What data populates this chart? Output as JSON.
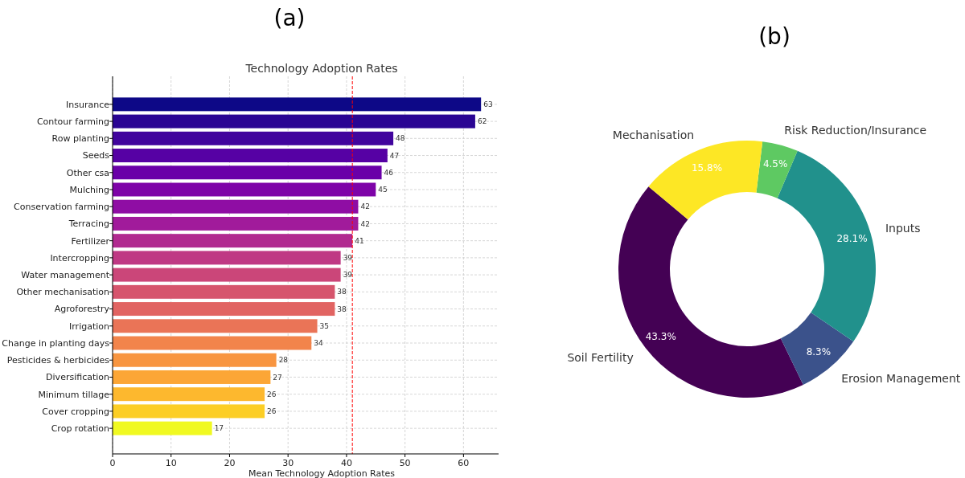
{
  "chart_data": [
    {
      "type": "bar",
      "orientation": "horizontal",
      "title": "Technology Adoption Rates",
      "xlabel": "Mean Technology Adoption Rates",
      "annotations": [
        "(a)"
      ],
      "categories": [
        "Insurance",
        "Contour farming",
        "Row planting",
        "Seeds",
        "Other csa",
        "Mulching",
        "Conservation farming",
        "Terracing",
        "Fertilizer",
        "Intercropping",
        "Water management",
        "Other mechanisation",
        "Agroforestry",
        "Irrigation",
        "Change in planting days",
        "Pesticides & herbicides",
        "Diversification",
        "Minimum tillage",
        "Cover cropping",
        "Crop rotation"
      ],
      "values": [
        63,
        62,
        48,
        47,
        46,
        45,
        42,
        42,
        41,
        39,
        39,
        38,
        38,
        35,
        34,
        28,
        27,
        26,
        26,
        17
      ],
      "colors": [
        "#0d0887",
        "#2a0593",
        "#41049d",
        "#5601a4",
        "#6a00a8",
        "#7e03a8",
        "#8f0da4",
        "#a11b9b",
        "#b12a90",
        "#bf3984",
        "#cb4679",
        "#d6556d",
        "#e16462",
        "#ea7457",
        "#f2844b",
        "#f89540",
        "#fca636",
        "#fdb82e",
        "#fcce25",
        "#f0f921"
      ],
      "xlim": [
        0,
        66
      ],
      "xticks": [
        0,
        10,
        20,
        30,
        40,
        50,
        60
      ],
      "grid": true,
      "data_labels": true,
      "ref_lines": [
        {
          "axis": "x",
          "value": 41,
          "color": "#ff0000",
          "line_style": "dashed"
        }
      ]
    },
    {
      "type": "donut",
      "annotations": [
        "(b)"
      ],
      "categories": [
        "Soil Fertility",
        "Erosion Management",
        "Inputs",
        "Risk Reduction/Insurance",
        "Mechanisation"
      ],
      "values": [
        43.3,
        8.3,
        28.1,
        4.5,
        15.8
      ],
      "colors": [
        "#440154",
        "#3b528b",
        "#21918c",
        "#5ec962",
        "#fde725"
      ],
      "value_labels": [
        "43.3%",
        "8.3%",
        "28.1%",
        "4.5%",
        "15.8%"
      ]
    }
  ]
}
